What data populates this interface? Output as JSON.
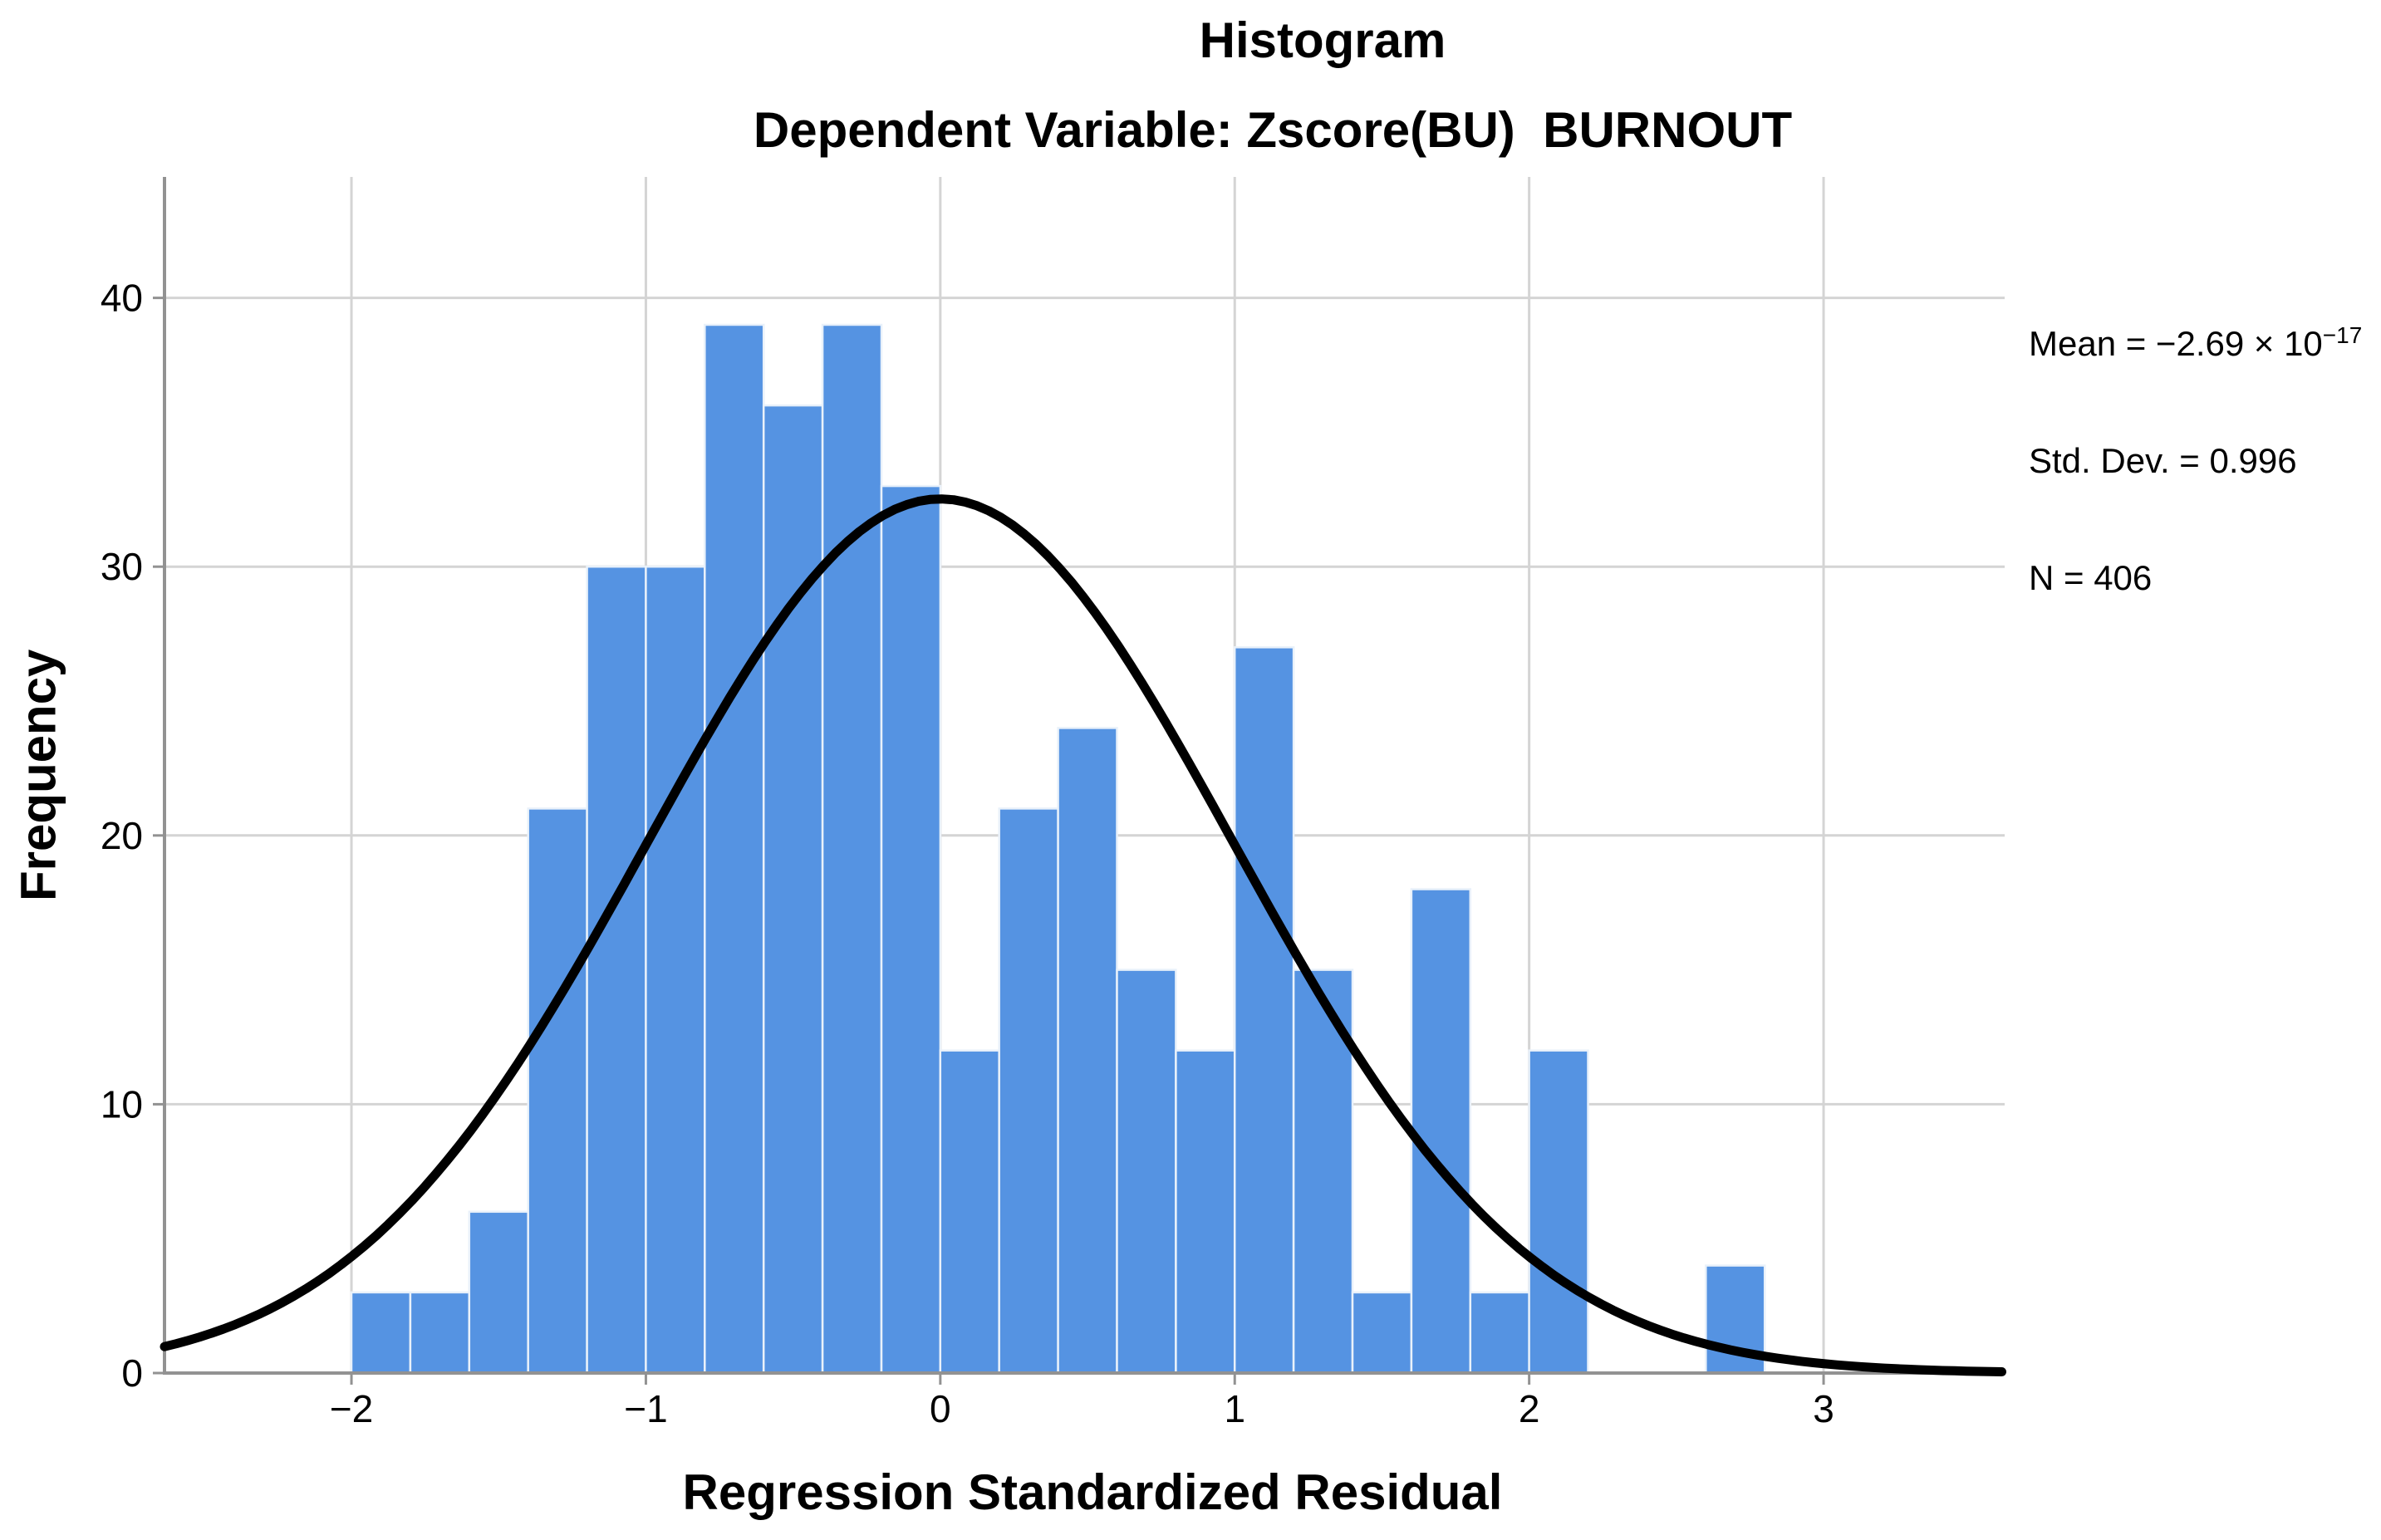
{
  "header": {
    "title": "Histogram",
    "subtitle": "Dependent Variable: Zscore(BU)  BURNOUT"
  },
  "stats": {
    "mean_prefix": "Mean = −2.69 × 10",
    "mean_exponent": "−17",
    "std_dev": "Std. Dev. = 0.996",
    "n": "N = 406"
  },
  "chart_data": {
    "type": "bar",
    "subtype": "histogram-with-normal-curve",
    "title": "Histogram",
    "subtitle": "Dependent Variable: Zscore(BU)  BURNOUT",
    "xlabel": "Regression Standardized Residual",
    "ylabel": "Frequency",
    "bin_start": -2.0,
    "bin_width": 0.2,
    "frequencies": [
      3,
      3,
      6,
      21,
      30,
      30,
      39,
      36,
      39,
      33,
      12,
      21,
      24,
      15,
      12,
      27,
      15,
      3,
      18,
      3,
      12,
      0,
      0,
      4
    ],
    "total_n": 406,
    "x_ticks": [
      -2,
      -1,
      0,
      1,
      2,
      3
    ],
    "x_tick_labels": [
      "−2",
      "−1",
      "0",
      "1",
      "2",
      "3"
    ],
    "y_ticks": [
      0,
      10,
      20,
      30,
      40
    ],
    "y_tick_labels": [
      "0",
      "10",
      "20",
      "30",
      "40"
    ],
    "xlim": [
      -2.635,
      3.615
    ],
    "ylim": [
      0,
      44.5
    ],
    "grid": true,
    "legend": "none",
    "normal_curve": {
      "mean": 0,
      "std_dev": 0.996,
      "n": 406,
      "peak": 32.52
    },
    "colors": {
      "bar_fill": "#5593E2",
      "bar_border": "#E9F1FA",
      "gridline": "#D4D4D4",
      "axis": "#929292",
      "curve": "#000000",
      "text": "#000000",
      "background": "#FFFFFF"
    }
  }
}
